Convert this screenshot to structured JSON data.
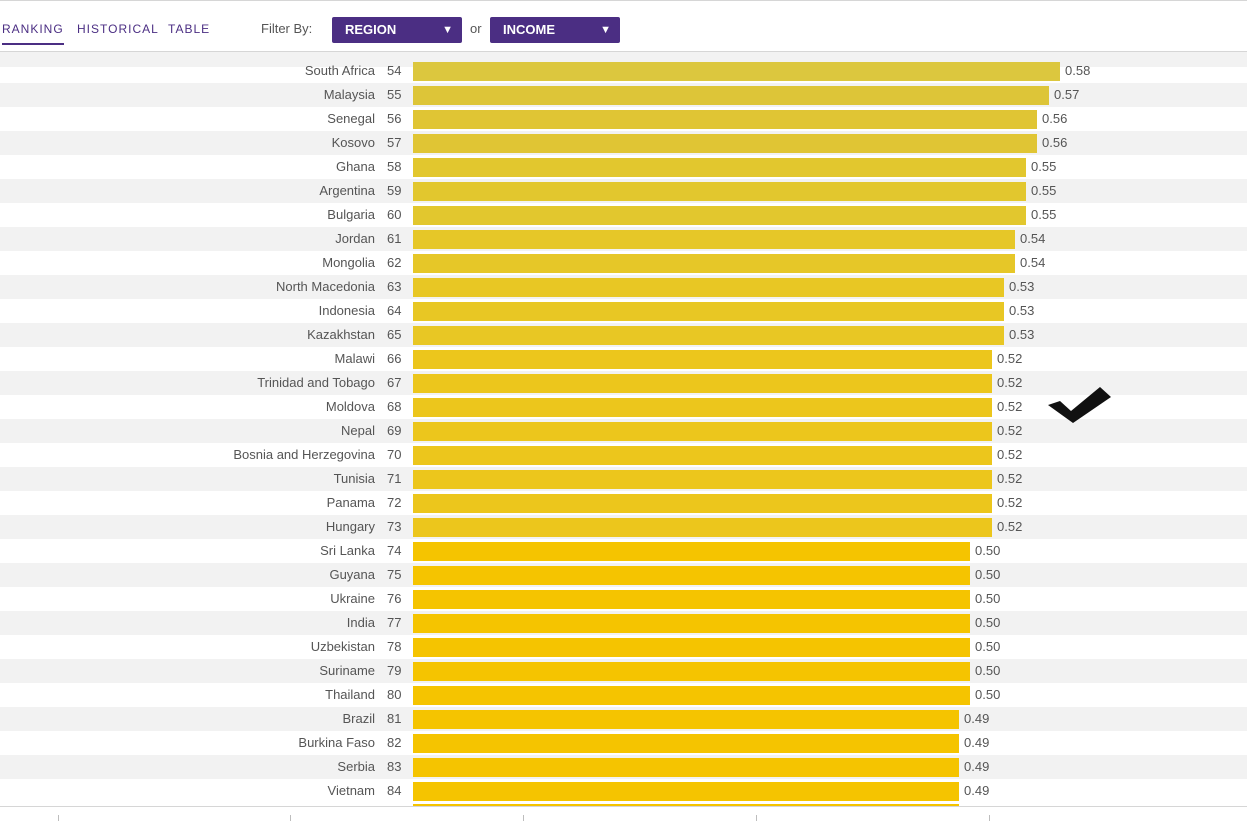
{
  "nav": {
    "tabs": [
      {
        "label": "RANKING",
        "active": true
      },
      {
        "label": "HISTORICAL",
        "active": false
      },
      {
        "label": "TABLE",
        "active": false
      }
    ]
  },
  "filter": {
    "label": "Filter By:",
    "region": "REGION",
    "or": "or",
    "income": "INCOME"
  },
  "colors": {
    "accent": "#4b2e83",
    "bar_058": "#dcc73e",
    "bar_057": "#ddc538",
    "bar_056": "#e0c534",
    "bar_055": "#e2c72e",
    "bar_054": "#e6c728",
    "bar_053": "#e8c724",
    "bar_052": "#ecc61c",
    "bar_050": "#f5c400",
    "bar_049": "#f5c400"
  },
  "chart_data": {
    "type": "bar",
    "orientation": "horizontal",
    "xlim": [
      0,
      1
    ],
    "rows": [
      {
        "country": "South Africa",
        "rank": "54",
        "value": 0.58,
        "label": "0.58"
      },
      {
        "country": "Malaysia",
        "rank": "55",
        "value": 0.57,
        "label": "0.57"
      },
      {
        "country": "Senegal",
        "rank": "56",
        "value": 0.56,
        "label": "0.56"
      },
      {
        "country": "Kosovo",
        "rank": "57",
        "value": 0.56,
        "label": "0.56"
      },
      {
        "country": "Ghana",
        "rank": "58",
        "value": 0.55,
        "label": "0.55"
      },
      {
        "country": "Argentina",
        "rank": "59",
        "value": 0.55,
        "label": "0.55"
      },
      {
        "country": "Bulgaria",
        "rank": "60",
        "value": 0.55,
        "label": "0.55"
      },
      {
        "country": "Jordan",
        "rank": "61",
        "value": 0.54,
        "label": "0.54"
      },
      {
        "country": "Mongolia",
        "rank": "62",
        "value": 0.54,
        "label": "0.54"
      },
      {
        "country": "North Macedonia",
        "rank": "63",
        "value": 0.53,
        "label": "0.53"
      },
      {
        "country": "Indonesia",
        "rank": "64",
        "value": 0.53,
        "label": "0.53"
      },
      {
        "country": "Kazakhstan",
        "rank": "65",
        "value": 0.53,
        "label": "0.53"
      },
      {
        "country": "Malawi",
        "rank": "66",
        "value": 0.52,
        "label": "0.52"
      },
      {
        "country": "Trinidad and Tobago",
        "rank": "67",
        "value": 0.52,
        "label": "0.52"
      },
      {
        "country": "Moldova",
        "rank": "68",
        "value": 0.52,
        "label": "0.52"
      },
      {
        "country": "Nepal",
        "rank": "69",
        "value": 0.52,
        "label": "0.52"
      },
      {
        "country": "Bosnia and Herzegovina",
        "rank": "70",
        "value": 0.52,
        "label": "0.52"
      },
      {
        "country": "Tunisia",
        "rank": "71",
        "value": 0.52,
        "label": "0.52"
      },
      {
        "country": "Panama",
        "rank": "72",
        "value": 0.52,
        "label": "0.52"
      },
      {
        "country": "Hungary",
        "rank": "73",
        "value": 0.52,
        "label": "0.52"
      },
      {
        "country": "Sri Lanka",
        "rank": "74",
        "value": 0.5,
        "label": "0.50"
      },
      {
        "country": "Guyana",
        "rank": "75",
        "value": 0.5,
        "label": "0.50"
      },
      {
        "country": "Ukraine",
        "rank": "76",
        "value": 0.5,
        "label": "0.50"
      },
      {
        "country": "India",
        "rank": "77",
        "value": 0.5,
        "label": "0.50"
      },
      {
        "country": "Uzbekistan",
        "rank": "78",
        "value": 0.5,
        "label": "0.50"
      },
      {
        "country": "Suriname",
        "rank": "79",
        "value": 0.5,
        "label": "0.50"
      },
      {
        "country": "Thailand",
        "rank": "80",
        "value": 0.5,
        "label": "0.50"
      },
      {
        "country": "Brazil",
        "rank": "81",
        "value": 0.49,
        "label": "0.49"
      },
      {
        "country": "Burkina Faso",
        "rank": "82",
        "value": 0.49,
        "label": "0.49"
      },
      {
        "country": "Serbia",
        "rank": "83",
        "value": 0.49,
        "label": "0.49"
      },
      {
        "country": "Vietnam",
        "rank": "84",
        "value": 0.49,
        "label": "0.49"
      }
    ]
  },
  "icons": {
    "cursor": "checkmark-icon"
  }
}
